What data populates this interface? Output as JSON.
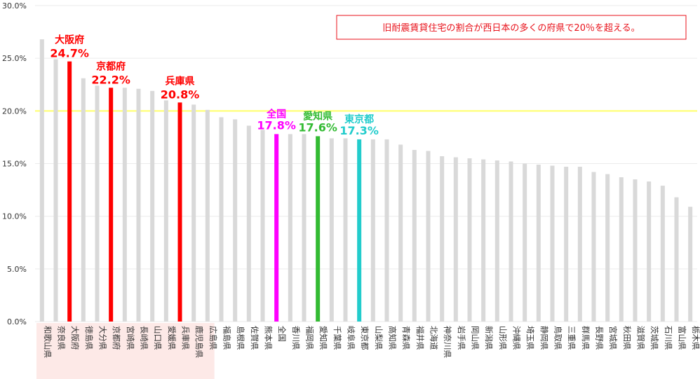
{
  "chart_data": {
    "type": "bar",
    "title": "",
    "xlabel": "",
    "ylabel": "",
    "ylim": [
      0,
      30
    ],
    "y_ticks": [
      "0.0%",
      "5.0%",
      "10.0%",
      "15.0%",
      "20.0%",
      "25.0%",
      "30.0%"
    ],
    "grid": true,
    "reference_line": 20,
    "annotation": "旧耐震賃貸住宅の割合が西日本の多くの府県で20％を超える。",
    "categories": [
      "和歌山県",
      "奈良県",
      "大阪府",
      "徳島県",
      "大分県",
      "京都府",
      "宮崎県",
      "長崎県",
      "山口県",
      "愛媛県",
      "兵庫県",
      "鹿児島県",
      "広島県",
      "福島県",
      "島根県",
      "佐賀県",
      "熊本県",
      "全国",
      "香川県",
      "福岡県",
      "愛知県",
      "千葉県",
      "岐阜県",
      "東京都",
      "山梨県",
      "高知県",
      "青森県",
      "福井県",
      "北海道",
      "神奈川県",
      "岩手県",
      "岡山県",
      "新潟県",
      "山形県",
      "沖縄県",
      "埼玉県",
      "静岡県",
      "鳥取県",
      "三重県",
      "群馬県",
      "長野県",
      "宮城県",
      "秋田県",
      "滋賀県",
      "茨城県",
      "石川県",
      "富山県",
      "栃木県"
    ],
    "values": [
      26.8,
      24.9,
      24.7,
      23.1,
      22.4,
      22.2,
      22.2,
      22.1,
      21.9,
      21.0,
      20.8,
      20.6,
      20.1,
      19.4,
      19.2,
      18.6,
      18.2,
      17.8,
      17.8,
      17.8,
      17.6,
      17.4,
      17.4,
      17.3,
      17.3,
      17.3,
      16.8,
      16.3,
      16.2,
      15.7,
      15.6,
      15.5,
      15.4,
      15.3,
      15.2,
      15.0,
      14.9,
      14.8,
      14.7,
      14.7,
      14.2,
      14.0,
      13.7,
      13.5,
      13.3,
      12.9,
      11.8,
      10.9
    ],
    "highlights": [
      {
        "category": "大阪府",
        "label": "大阪府",
        "value_label": "24.7%",
        "color": "#ff0000"
      },
      {
        "category": "京都府",
        "label": "京都府",
        "value_label": "22.2%",
        "color": "#ff0000"
      },
      {
        "category": "兵庫県",
        "label": "兵庫県",
        "value_label": "20.8%",
        "color": "#ff0000"
      },
      {
        "category": "全国",
        "label": "全国",
        "value_label": "17.8%",
        "color": "#ff00ff"
      },
      {
        "category": "愛知県",
        "label": "愛知県",
        "value_label": "17.6%",
        "color": "#33bb33"
      },
      {
        "category": "東京都",
        "label": "東京都",
        "value_label": "17.3%",
        "color": "#22cccc"
      }
    ],
    "colors": {
      "default_bar": "#d9d9d9",
      "reference_line": "#ffff66",
      "west_japan_band": "#fde9e7",
      "note_text": "#e8111a",
      "note_border": "#e8111a",
      "grid": "#ebebeb"
    }
  }
}
